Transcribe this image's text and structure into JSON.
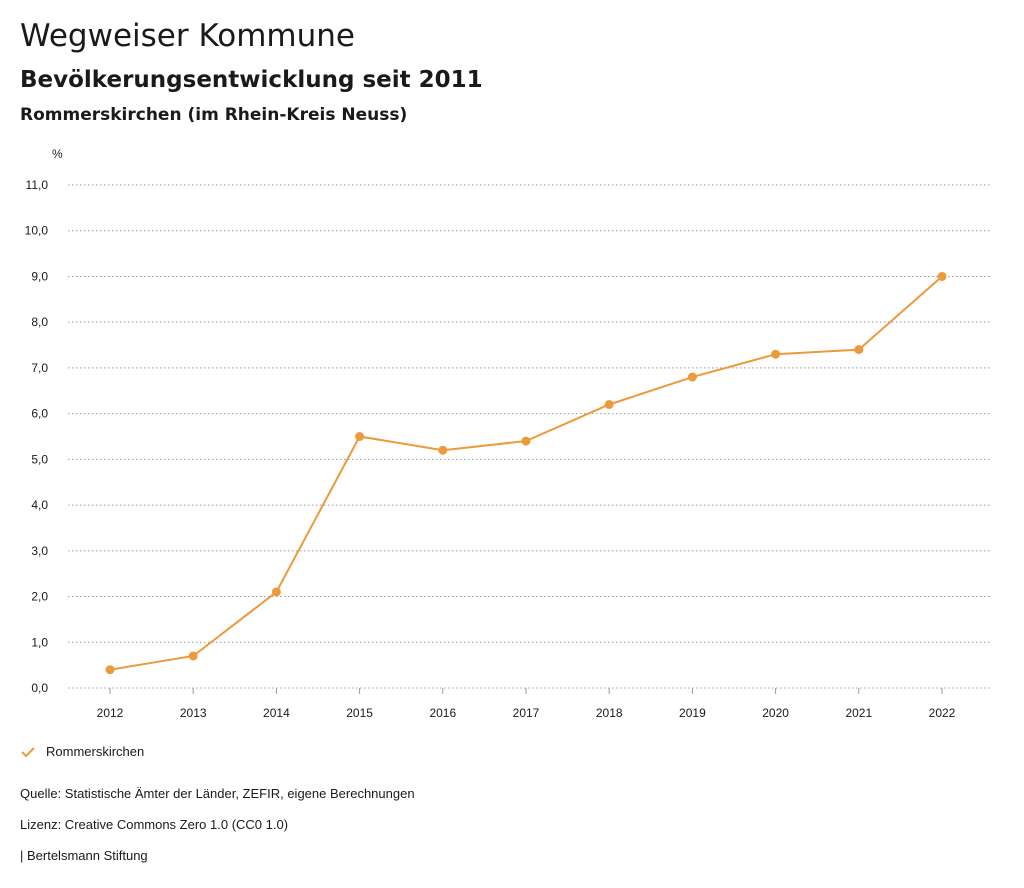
{
  "header": {
    "title": "Wegweiser Kommune",
    "subtitle": "Bevölkerungsentwicklung seit 2011",
    "region": "Rommerskirchen (im Rhein-Kreis Neuss)"
  },
  "chart_data": {
    "type": "line",
    "unit_label": "%",
    "x": [
      "2012",
      "2013",
      "2014",
      "2015",
      "2016",
      "2017",
      "2018",
      "2019",
      "2020",
      "2021",
      "2022"
    ],
    "series": [
      {
        "name": "Rommerskirchen",
        "color": "#ec9a3c",
        "values": [
          0.4,
          0.7,
          2.1,
          5.5,
          5.2,
          5.4,
          6.2,
          6.8,
          7.3,
          7.4,
          9.0
        ]
      }
    ],
    "ylim": [
      0,
      11
    ],
    "yticks": [
      "0,0",
      "1,0",
      "2,0",
      "3,0",
      "4,0",
      "5,0",
      "6,0",
      "7,0",
      "8,0",
      "9,0",
      "10,0",
      "11,0"
    ],
    "grid": true,
    "legend": "bottom-left"
  },
  "legend": {
    "label": "Rommerskirchen"
  },
  "footer": {
    "source": "Quelle: Statistische Ämter der Länder, ZEFIR, eigene Berechnungen",
    "license": "Lizenz: Creative Commons Zero 1.0 (CC0 1.0)",
    "brand": "| Bertelsmann Stiftung"
  }
}
